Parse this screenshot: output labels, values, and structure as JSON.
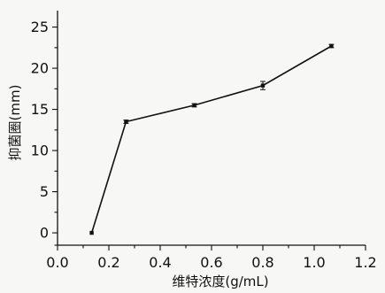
{
  "chart_data": {
    "type": "line",
    "title": "",
    "xlabel": "维特浓度(g/mL)",
    "ylabel": "抑菌圈(mm)",
    "xlim": [
      0.0,
      1.2
    ],
    "ylim": [
      -1.5,
      27
    ],
    "x_ticks": [
      0.0,
      0.2,
      0.4,
      0.6,
      0.8,
      1.0,
      1.2
    ],
    "x_tick_labels": [
      "0.0",
      "0.2",
      "0.4",
      "0.6",
      "0.8",
      "1.0",
      "1.2"
    ],
    "y_ticks": [
      0,
      5,
      10,
      15,
      20,
      25
    ],
    "y_tick_labels": [
      "0",
      "5",
      "10",
      "15",
      "20",
      "25"
    ],
    "grid": false,
    "series": [
      {
        "x": [
          0.133,
          0.267,
          0.533,
          0.8,
          1.067
        ],
        "y": [
          0,
          13.5,
          15.5,
          17.9,
          22.7
        ],
        "error": [
          0,
          0.2,
          0.2,
          0.5,
          0.2
        ]
      }
    ]
  }
}
